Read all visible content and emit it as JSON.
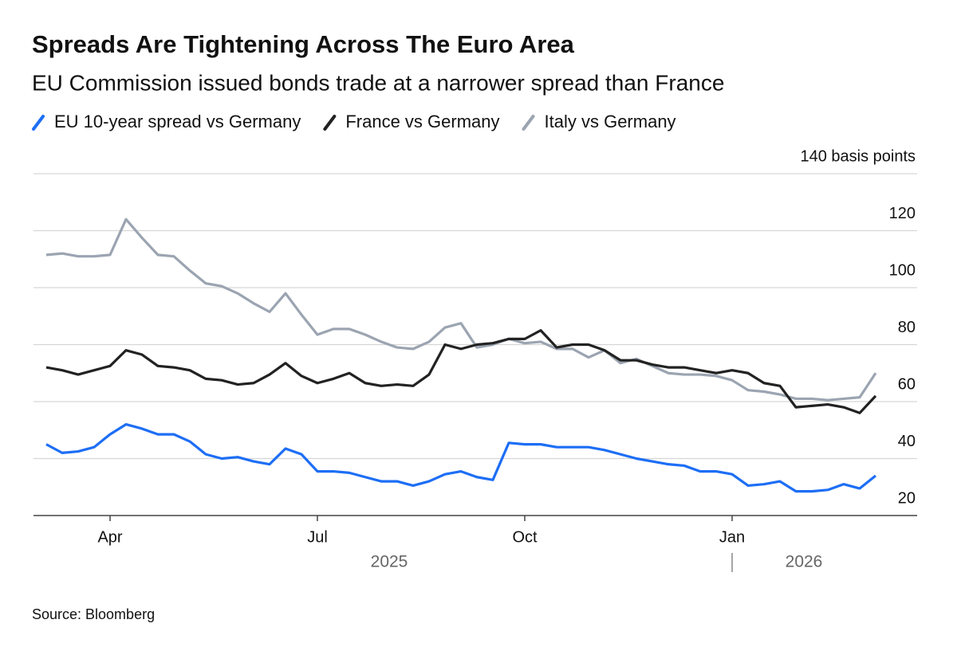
{
  "chart_data": {
    "type": "line",
    "title": "Spreads Are Tightening Across The Euro Area",
    "subtitle": "EU Commission issued bonds trade at a narrower spread than France",
    "source": "Source: Bloomberg",
    "categories": [
      null,
      null,
      null,
      null,
      "Apr",
      null,
      null,
      null,
      null,
      null,
      null,
      null,
      null,
      null,
      null,
      null,
      null,
      "Jul",
      null,
      null,
      null,
      null,
      null,
      null,
      null,
      null,
      null,
      null,
      null,
      null,
      "Oct",
      null,
      null,
      null,
      null,
      null,
      null,
      null,
      null,
      null,
      null,
      null,
      null,
      "Jan",
      null,
      null,
      null,
      null,
      null,
      null,
      null,
      null,
      null
    ],
    "x_group_labels": [
      "2025",
      "2026"
    ],
    "series": [
      {
        "name": "EU 10-year spread vs Germany",
        "color": "#1d6ef5",
        "values": [
          45,
          42,
          42.5,
          44,
          48.5,
          52,
          50.5,
          48.5,
          48.5,
          46,
          41.5,
          40,
          40.5,
          39,
          38,
          43.5,
          41.5,
          35.5,
          35.5,
          35,
          33.5,
          32,
          32,
          30.5,
          32,
          34.5,
          35.5,
          33.5,
          32.5,
          45.5,
          45,
          45,
          44,
          44,
          44,
          43,
          41.5,
          40,
          39,
          38,
          37.5,
          35.5,
          35.5,
          34.5,
          30.5,
          31,
          32,
          28.5,
          28.5,
          29,
          31,
          29.5,
          34
        ]
      },
      {
        "name": "France vs Germany",
        "color": "#222222",
        "values": [
          72,
          71,
          69.5,
          71,
          72.5,
          78,
          76.5,
          72.5,
          72,
          71,
          68,
          67.5,
          66,
          66.5,
          69.5,
          73.5,
          69,
          66.5,
          68,
          70,
          66.5,
          65.5,
          66,
          65.5,
          69.5,
          80,
          78.5,
          80,
          80.5,
          82,
          82,
          85,
          79,
          80,
          80,
          78,
          74.5,
          74.5,
          73,
          72,
          72,
          71,
          70,
          71,
          70,
          66.5,
          65.5,
          58,
          58.5,
          59,
          58,
          56,
          62
        ]
      },
      {
        "name": "Italy vs Germany",
        "color": "#9ba4b1",
        "values": [
          111.5,
          112,
          111,
          111,
          111.5,
          124,
          117.5,
          111.5,
          111,
          106,
          101.5,
          100.5,
          98,
          94.5,
          91.5,
          98,
          90.5,
          83.5,
          85.5,
          85.5,
          83.5,
          81,
          79,
          78.5,
          81,
          86,
          87.5,
          79,
          80,
          82,
          80.5,
          81,
          78.5,
          78.5,
          75.5,
          78,
          73.5,
          75,
          72.5,
          70,
          69.5,
          69.5,
          69,
          67.5,
          64,
          63.5,
          62.5,
          61,
          61,
          60.5,
          61,
          61.5,
          70
        ]
      }
    ],
    "ylim": [
      20,
      140
    ],
    "yticks": [
      20,
      40,
      60,
      80,
      100,
      120,
      {
        "value": 140,
        "label": "140 basis points"
      }
    ],
    "grid": true
  }
}
